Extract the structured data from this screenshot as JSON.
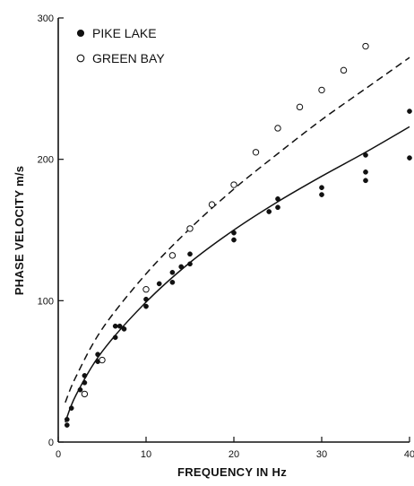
{
  "chart_data": {
    "type": "scatter",
    "title": "",
    "xlabel": "FREQUENCY IN Hz",
    "ylabel": "PHASE VELOCITY  m/s",
    "xlim": [
      0,
      40
    ],
    "ylim": [
      0,
      300
    ],
    "x_ticks": [
      "0",
      "10",
      "20",
      "30",
      "40"
    ],
    "y_ticks": [
      "0",
      "100",
      "200",
      "300"
    ],
    "grid": false,
    "legend_position": "top-left",
    "series": [
      {
        "name": "PIKE LAKE",
        "marker": "filled-circle",
        "points": [
          [
            1,
            12
          ],
          [
            1,
            16
          ],
          [
            1.5,
            24
          ],
          [
            2.5,
            37
          ],
          [
            3,
            42
          ],
          [
            3,
            47
          ],
          [
            4.5,
            57
          ],
          [
            4.5,
            62
          ],
          [
            5,
            58
          ],
          [
            6.5,
            74
          ],
          [
            6.5,
            82
          ],
          [
            7,
            82
          ],
          [
            7.5,
            80
          ],
          [
            10,
            96
          ],
          [
            10,
            101
          ],
          [
            11.5,
            112
          ],
          [
            13,
            113
          ],
          [
            13,
            120
          ],
          [
            14,
            124
          ],
          [
            15,
            126
          ],
          [
            15,
            133
          ],
          [
            20,
            143
          ],
          [
            20,
            148
          ],
          [
            24,
            163
          ],
          [
            25,
            166
          ],
          [
            25,
            172
          ],
          [
            30,
            175
          ],
          [
            30,
            180
          ],
          [
            35,
            185
          ],
          [
            35,
            191
          ],
          [
            35,
            203
          ],
          [
            40,
            201
          ],
          [
            40,
            234
          ]
        ]
      },
      {
        "name": "GREEN BAY",
        "marker": "open-circle",
        "points": [
          [
            3,
            34
          ],
          [
            5,
            58
          ],
          [
            10,
            108
          ],
          [
            13,
            132
          ],
          [
            15,
            151
          ],
          [
            17.5,
            168
          ],
          [
            20,
            182
          ],
          [
            22.5,
            205
          ],
          [
            25,
            222
          ],
          [
            27.5,
            237
          ],
          [
            30,
            249
          ],
          [
            32.5,
            263
          ],
          [
            35,
            280
          ]
        ]
      }
    ],
    "fit_curves": [
      {
        "series": "PIKE LAKE",
        "style": "solid",
        "points": [
          [
            0.8,
            14
          ],
          [
            2,
            33
          ],
          [
            5,
            64
          ],
          [
            10,
            99
          ],
          [
            15,
            127
          ],
          [
            20,
            150
          ],
          [
            25,
            170
          ],
          [
            30,
            188
          ],
          [
            35,
            205
          ],
          [
            40,
            223
          ]
        ]
      },
      {
        "series": "GREEN BAY",
        "style": "dashed",
        "points": [
          [
            0.8,
            28
          ],
          [
            2,
            46
          ],
          [
            5,
            80
          ],
          [
            10,
            119
          ],
          [
            15,
            151
          ],
          [
            20,
            179
          ],
          [
            25,
            204
          ],
          [
            30,
            228
          ],
          [
            35,
            250
          ],
          [
            40,
            272
          ]
        ]
      }
    ]
  }
}
